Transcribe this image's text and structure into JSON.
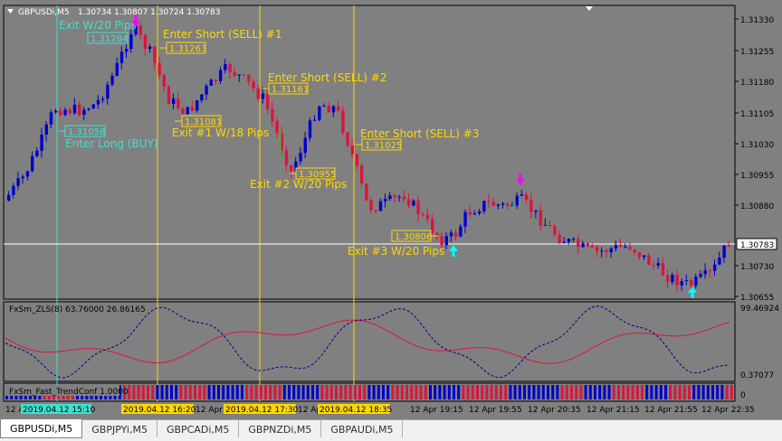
{
  "header": {
    "symbol": "GBPUSDi,M5",
    "ohlc": "1.30734 1.30807 1.30724 1.30783"
  },
  "indicators": {
    "zls_label": "FxSm_ZLS(8) 63.76000 26.86165",
    "trend_label": "FxSm_Fast_TrendConf 1.0000"
  },
  "price_axis": {
    "ticks": [
      "1.31330",
      "1.31255",
      "1.31180",
      "1.31105",
      "1.31030",
      "1.30955",
      "1.30880",
      "1.30730",
      "1.30655"
    ],
    "current_price": "1.30783",
    "zls_ticks": [
      "99.46924",
      "0.37077"
    ],
    "trend_ticks": [
      "0"
    ]
  },
  "time_axis": {
    "ticks": [
      "12 A",
      "12 Apr 19:15",
      "12 Apr 19:55",
      "12 Apr 20:35",
      "12 Apr 21:15",
      "12 Apr 21:55",
      "12 Apr 22:35"
    ],
    "highlighted": [
      "2019.04.12 15:10",
      "2019.04.12 16:20",
      "12 Apr 16:3",
      "2019.04.12 17:30",
      "12 Apr 1",
      "2019.04.12 18:35"
    ]
  },
  "annotations": {
    "exit_20_top": "Exit W/20 Pips",
    "price_131284": "1.31284",
    "short1": "Enter Short (SELL) #1",
    "price_131263": "1.31263",
    "short2": "Enter Short (SELL) #2",
    "price_131161": "1.31161",
    "price_131081": "1.31081",
    "exit1": "Exit #1 W/18 Pips",
    "price_131058": "1.31058",
    "enter_long": "Enter Long (BUY)",
    "short3": "Enter Short (SELL) #3",
    "price_131025": "1.31025",
    "price_130955": "1.30955",
    "exit2": "Exit #2 W/20 Pips",
    "price_130806": "1.30806",
    "exit3": "Exit #3 W/20 Pips"
  },
  "tabs": [
    {
      "label": "GBPUSDi,M5",
      "active": true
    },
    {
      "label": "GBPJPYi,M5",
      "active": false
    },
    {
      "label": "GBPCADi,M5",
      "active": false
    },
    {
      "label": "GBPNZDi,M5",
      "active": false
    },
    {
      "label": "GBPAUDi,M5",
      "active": false
    }
  ],
  "colors": {
    "background": "#808080",
    "bull": "#0000cc",
    "bear": "#dc143c",
    "annotation": "#ffd700",
    "cyan_annotation": "#40e0d0",
    "arrow_up": "#00ffff",
    "arrow_down": "#ff00ff",
    "zls_line": "#dc143c",
    "zls_dotted": "#00008b"
  }
}
